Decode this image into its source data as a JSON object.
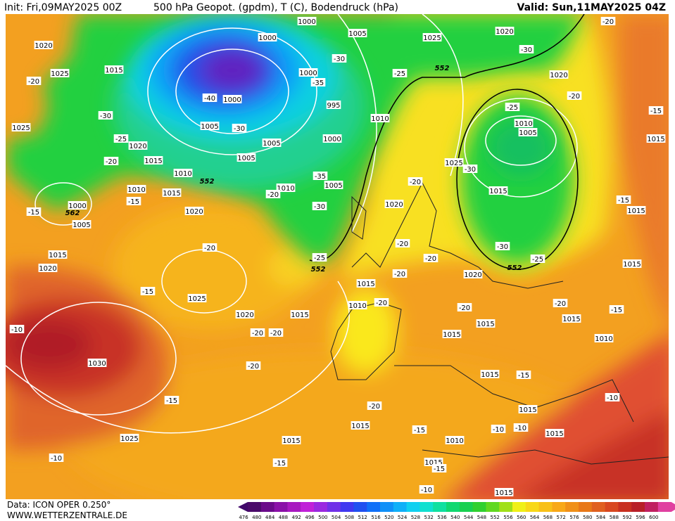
{
  "header": {
    "init": "Init: Fri,09MAY2025 00Z",
    "title": "500 hPa Geopot. (gpdm), T (C), Bodendruck (hPa)",
    "valid": "Valid: Sun,11MAY2025 04Z"
  },
  "footer": {
    "source": "Data: ICON OPER 0.250°",
    "site": "WWW.WETTERZENTRALE.DE"
  },
  "colorbar": {
    "labels": [
      "476",
      "480",
      "484",
      "488",
      "492",
      "496",
      "500",
      "504",
      "508",
      "512",
      "516",
      "520",
      "524",
      "528",
      "532",
      "536",
      "540",
      "544",
      "548",
      "552",
      "556",
      "560",
      "564",
      "568",
      "572",
      "576",
      "580",
      "584",
      "588",
      "592",
      "596",
      "600"
    ]
  },
  "map": {
    "labels": [
      "1000",
      "1005",
      "1025",
      "1020",
      "-20",
      "1020",
      "1015",
      "1025",
      "-20",
      "1000",
      "1000",
      "-30",
      "-35",
      "-25",
      "552",
      "-30",
      "1020",
      "-20",
      "-40",
      "1000",
      "995",
      "1010",
      "-25",
      "1010",
      "1005",
      "-15",
      "1025",
      "-30",
      "1005",
      "-30",
      "-25",
      "1020",
      "1005",
      "1000",
      "1015",
      "1015",
      "-20",
      "1010",
      "1005",
      "552",
      "1025",
      "-30",
      "-35",
      "-20",
      "1010",
      "1010",
      "1005",
      "-20",
      "1015",
      "1015",
      "-15",
      "-15",
      "-30",
      "1020",
      "1000",
      "562",
      "1020",
      "1015",
      "-15",
      "1005",
      "-20",
      "-20",
      "-20",
      "-30",
      "-25",
      "-25",
      "552",
      "552",
      "1015",
      "1020",
      "1020",
      "1015",
      "-20",
      "1015",
      "-15",
      "1025",
      "1010",
      "-20",
      "-20",
      "-20",
      "-15",
      "1020",
      "1015",
      "1015",
      "1015",
      "-10",
      "-20",
      "-20",
      "1015",
      "1010",
      "1030",
      "-20",
      "1015",
      "-15",
      "-10",
      "-15",
      "-20",
      "1015",
      "1015",
      "-15",
      "-10",
      "-10",
      "1015",
      "1025",
      "1010",
      "1015",
      "-10",
      "1015",
      "-15",
      "-15",
      "-10",
      "1015"
    ]
  }
}
